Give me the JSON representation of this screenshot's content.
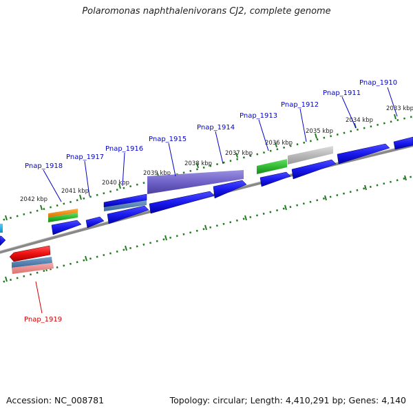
{
  "title": "Polaromonas naphthalenivorans CJ2, complete genome",
  "footer": {
    "accession": "Accession: NC_008781",
    "stats": "Topology: circular; Length: 4,410,291 bp; Genes: 4,140"
  },
  "kbp_ticks": [
    {
      "label": "2033 kbp",
      "kbp": 2033
    },
    {
      "label": "2034 kbp",
      "kbp": 2034
    },
    {
      "label": "2035 kbp",
      "kbp": 2035
    },
    {
      "label": "2036 kbp",
      "kbp": 2036
    },
    {
      "label": "2037 kbp",
      "kbp": 2037
    },
    {
      "label": "2038 kbp",
      "kbp": 2038
    },
    {
      "label": "2039 kbp",
      "kbp": 2039
    },
    {
      "label": "2040 kbp",
      "kbp": 2040
    },
    {
      "label": "2041 kbp",
      "kbp": 2041
    },
    {
      "label": "2042 kbp",
      "kbp": 2042
    }
  ],
  "gene_labels": [
    {
      "label": "Pnap_1910",
      "strand": "forward",
      "color": "#0000cc"
    },
    {
      "label": "Pnap_1911",
      "strand": "forward",
      "color": "#0000cc"
    },
    {
      "label": "Pnap_1912",
      "strand": "forward",
      "color": "#0000cc"
    },
    {
      "label": "Pnap_1913",
      "strand": "forward",
      "color": "#0000cc"
    },
    {
      "label": "Pnap_1914",
      "strand": "forward",
      "color": "#0000cc"
    },
    {
      "label": "Pnap_1915",
      "strand": "forward",
      "color": "#0000cc"
    },
    {
      "label": "Pnap_1916",
      "strand": "forward",
      "color": "#0000cc"
    },
    {
      "label": "Pnap_1917",
      "strand": "forward",
      "color": "#0000cc"
    },
    {
      "label": "Pnap_1918",
      "strand": "forward",
      "color": "#0000cc"
    },
    {
      "label": "Pnap_1919",
      "strand": "reverse",
      "color": "#cc0000"
    }
  ],
  "colors": {
    "cds": "#1a1aee",
    "rna": "#ee1111",
    "backbone": "#8a8a8a",
    "tick": "#1f7a1f",
    "orange": "#f08a10",
    "green": "#33bb33",
    "purple": "#6f62c8",
    "steel": "#4a7ab0",
    "grey": "#b8b8b8",
    "cyan": "#22b8e8",
    "pink": "#e88888"
  }
}
